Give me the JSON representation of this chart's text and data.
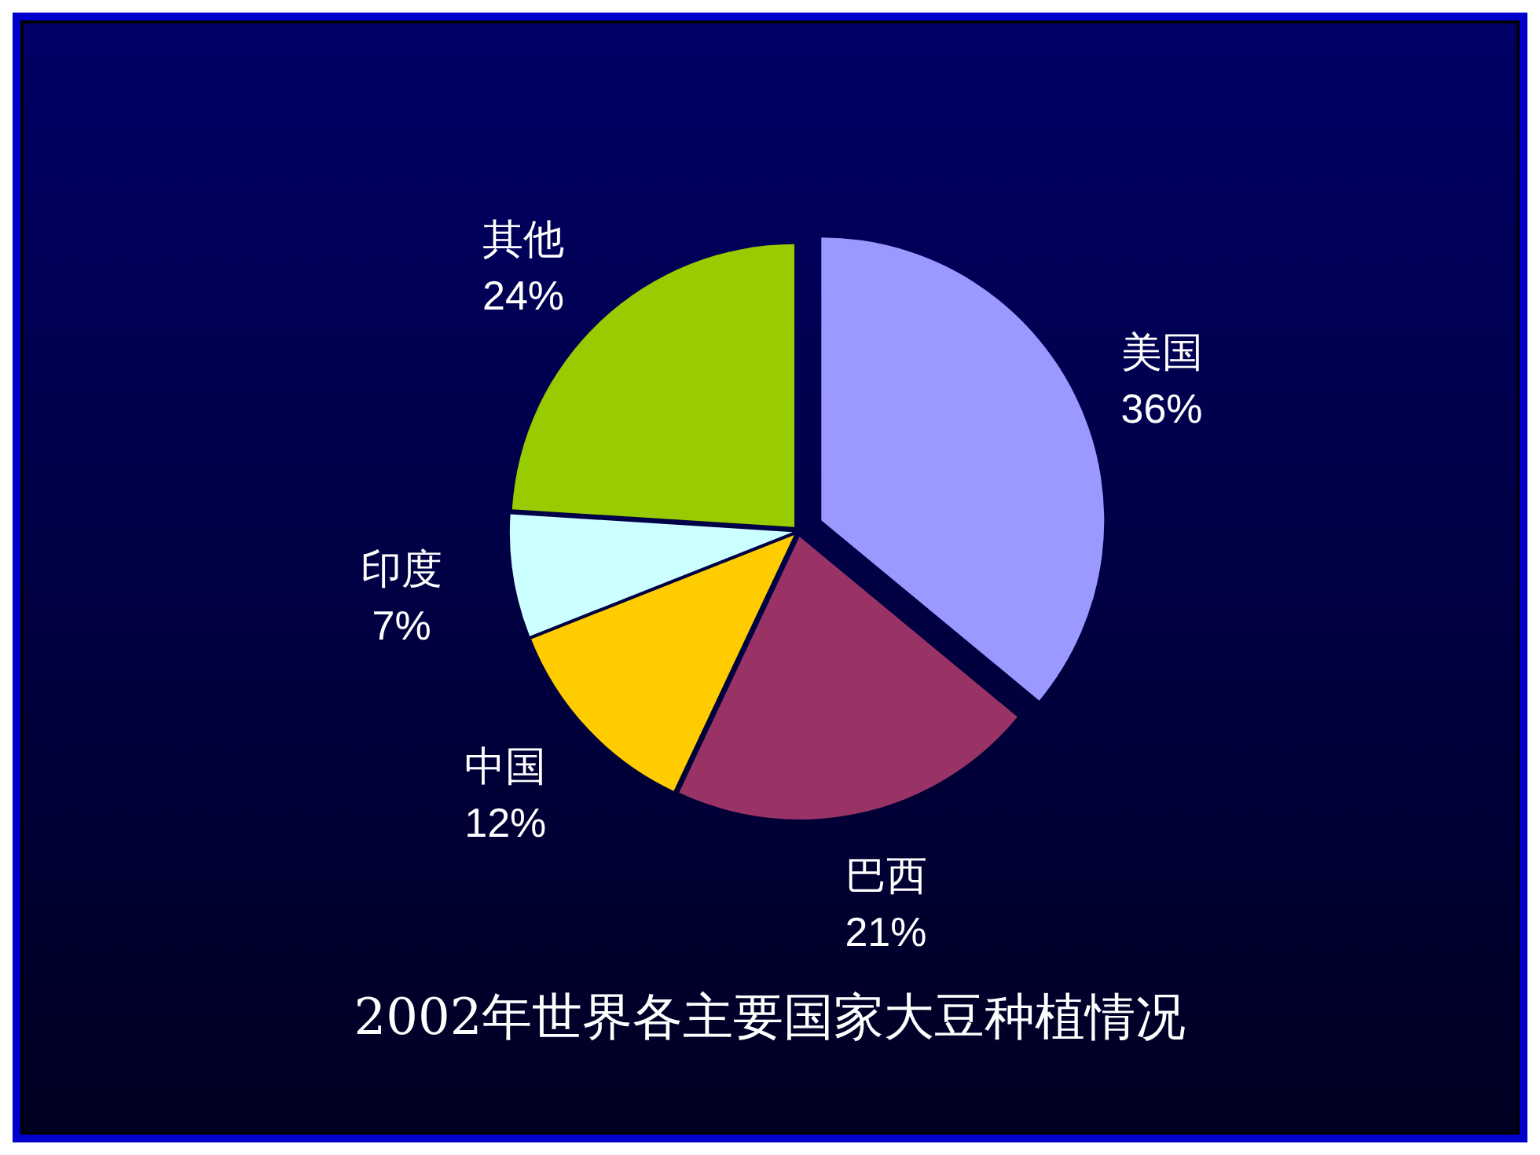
{
  "chart_data": {
    "type": "pie",
    "title": "2002年世界各主要国家大豆种植情况",
    "categories": [
      "美国",
      "巴西",
      "中国",
      "印度",
      "其他"
    ],
    "values": [
      36,
      21,
      12,
      7,
      24
    ],
    "value_labels": [
      "36%",
      "21%",
      "12%",
      "7%",
      "24%"
    ],
    "colors": [
      "#9999ff",
      "#993366",
      "#ffcc00",
      "#ccffff",
      "#99cc00"
    ]
  }
}
